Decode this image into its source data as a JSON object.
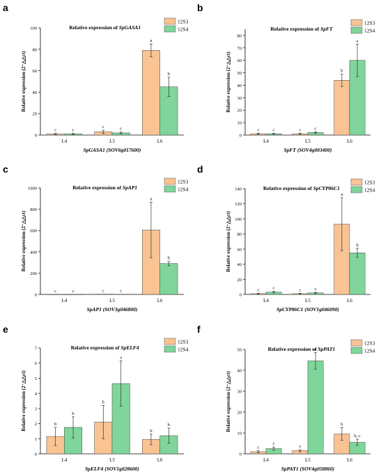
{
  "colors": {
    "12S3": "#f9c394",
    "12S4": "#7fd59a"
  },
  "panels": [
    {
      "letter": "a",
      "chart_data": {
        "type": "bar",
        "title_prefix": "Relative expression of ",
        "title_gene": "SpGASA1",
        "ylabel": "Relative expression (2⁻△△ct)",
        "xlabel_gene": "SpGASA1",
        "xlabel_id": " (SOV6g017600)",
        "categories": [
          "L4",
          "L5",
          "L6"
        ],
        "ylim": [
          0,
          100
        ],
        "yticks": [
          0,
          20,
          40,
          60,
          80,
          100
        ],
        "series": [
          {
            "name": "12S3",
            "values": [
              1,
              3,
              79
            ],
            "errors": [
              0.5,
              1.5,
              6
            ],
            "letters": [
              "c",
              "c",
              "a"
            ]
          },
          {
            "name": "12S4",
            "values": [
              1,
              2,
              45
            ],
            "errors": [
              0.5,
              0.8,
              9
            ],
            "letters": [
              "c",
              "c",
              "b"
            ]
          }
        ]
      }
    },
    {
      "letter": "b",
      "chart_data": {
        "type": "bar",
        "title_prefix": "Relative expression of ",
        "title_gene": "SpFT",
        "ylabel": "Relative expression (2⁻△△ct)",
        "xlabel_gene": "SpFT",
        "xlabel_id": " (SOV4g003400)",
        "categories": [
          "L4",
          "L5",
          "L6"
        ],
        "ylim": [
          0,
          85
        ],
        "yticks": [
          0,
          10,
          20,
          30,
          40,
          50,
          60,
          70,
          80
        ],
        "series": [
          {
            "name": "12S3",
            "values": [
              1,
              1,
              44
            ],
            "errors": [
              0.3,
              0.3,
              5
            ],
            "letters": [
              "c",
              "c",
              "b"
            ]
          },
          {
            "name": "12S4",
            "values": [
              1,
              2,
              60
            ],
            "errors": [
              0.3,
              0.5,
              13
            ],
            "letters": [
              "c",
              "c",
              "a"
            ]
          }
        ]
      }
    },
    {
      "letter": "c",
      "chart_data": {
        "type": "bar",
        "title_prefix": "Relative expression of ",
        "title_gene": "SpAP1",
        "ylabel": "Relative expression (2⁻△△ct)",
        "xlabel_gene": "SpAP1",
        "xlabel_id": " (SOV3g046800)",
        "categories": [
          "L4",
          "L5",
          "L6"
        ],
        "ylim": [
          0,
          1000
        ],
        "yticks": [
          0,
          200,
          400,
          600,
          800,
          1000
        ],
        "series": [
          {
            "name": "12S3",
            "values": [
              1,
              3,
              605
            ],
            "errors": [
              0,
              0,
              260
            ],
            "letters": [
              "c",
              "c",
              "a"
            ]
          },
          {
            "name": "12S4",
            "values": [
              1,
              2,
              290
            ],
            "errors": [
              0,
              0,
              20
            ],
            "letters": [
              "c",
              "c",
              "b"
            ]
          }
        ]
      }
    },
    {
      "letter": "d",
      "chart_data": {
        "type": "bar",
        "title_prefix": "Relative expression of ",
        "title_gene": "SpCYP86C1",
        "ylabel": "Relative expression (2⁻△△ct)",
        "xlabel_gene": "SpCYP86C1",
        "xlabel_id": " (SOV1g046090)",
        "categories": [
          "L4",
          "L5",
          "L6"
        ],
        "ylim": [
          0,
          140
        ],
        "yticks": [
          0,
          20,
          40,
          60,
          80,
          100,
          120,
          140
        ],
        "series": [
          {
            "name": "12S3",
            "values": [
              1,
              1,
              93
            ],
            "errors": [
              0.5,
              0.5,
              35
            ],
            "letters": [
              "c",
              "c",
              "a"
            ]
          },
          {
            "name": "12S4",
            "values": [
              3,
              2,
              55
            ],
            "errors": [
              1,
              0.8,
              6
            ],
            "letters": [
              "c",
              "c",
              "b"
            ]
          }
        ]
      }
    },
    {
      "letter": "e",
      "chart_data": {
        "type": "bar",
        "title_prefix": "Relative expression of ",
        "title_gene": "SpELF4",
        "ylabel": "Relative expression (2⁻△△ct)",
        "xlabel_gene": "SpELF4",
        "xlabel_id": " (SOV1g028600)",
        "categories": [
          "L4",
          "L5",
          "L6"
        ],
        "ylim": [
          0,
          7
        ],
        "yticks": [
          0,
          1,
          2,
          3,
          4,
          5,
          6,
          7
        ],
        "series": [
          {
            "name": "12S3",
            "values": [
              1.15,
              2.1,
              0.95
            ],
            "errors": [
              0.6,
              1.1,
              0.35
            ],
            "letters": [
              "b",
              "b",
              "b"
            ]
          },
          {
            "name": "12S4",
            "values": [
              1.75,
              4.65,
              1.2
            ],
            "errors": [
              0.7,
              1.5,
              0.5
            ],
            "letters": [
              "b",
              "a",
              "b"
            ]
          }
        ]
      }
    },
    {
      "letter": "f",
      "chart_data": {
        "type": "bar",
        "title_prefix": "Relative expression of ",
        "title_gene": "SpPAT1",
        "ylabel": "Relative expression (2⁻△△ct)",
        "xlabel_gene": "SpPAT1",
        "xlabel_id": " (SOV4g058860)",
        "categories": [
          "L4",
          "L5",
          "L6"
        ],
        "ylim": [
          0,
          50
        ],
        "yticks": [
          0,
          10,
          20,
          30,
          40,
          50
        ],
        "series": [
          {
            "name": "12S3",
            "values": [
              1,
              1.5,
              9.5
            ],
            "errors": [
              0.5,
              0.5,
              3
            ],
            "letters": [
              "c",
              "c",
              "b"
            ]
          },
          {
            "name": "12S4",
            "values": [
              2.5,
              44.5,
              5.5
            ],
            "errors": [
              0.8,
              4,
              1.5
            ],
            "letters": [
              "c",
              "a",
              "b, c"
            ]
          }
        ]
      }
    }
  ]
}
